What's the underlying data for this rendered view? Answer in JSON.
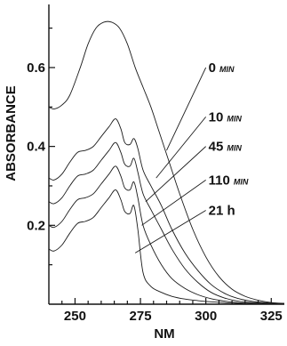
{
  "chart_data": {
    "type": "line",
    "title": "",
    "xlabel": "NM",
    "ylabel": "ABSORBANCE",
    "xlim": [
      240,
      330
    ],
    "ylim": [
      0,
      0.76
    ],
    "x_ticks": [
      250,
      275,
      300,
      325
    ],
    "y_ticks": [
      0.2,
      0.4,
      0.6
    ],
    "x_tick_labels": [
      "250",
      "275",
      "300",
      "325"
    ],
    "y_tick_labels": [
      "0.2",
      "0.4",
      "0.6"
    ],
    "grid": false,
    "legend": "annotations-right",
    "series": [
      {
        "name": "0",
        "unit": "MIN",
        "label_anchor": [
          300,
          0.6
        ],
        "curve_point": [
          285,
          0.39
        ],
        "x": [
          240,
          242,
          245,
          248,
          252,
          255,
          258,
          261,
          264,
          267,
          270,
          273,
          276,
          279,
          282,
          286,
          290,
          295,
          300,
          305,
          310,
          315,
          320,
          325,
          330
        ],
        "y": [
          0.5,
          0.495,
          0.505,
          0.53,
          0.6,
          0.66,
          0.7,
          0.715,
          0.715,
          0.7,
          0.66,
          0.6,
          0.55,
          0.5,
          0.44,
          0.36,
          0.28,
          0.19,
          0.12,
          0.07,
          0.038,
          0.02,
          0.01,
          0.004,
          0.002
        ]
      },
      {
        "name": "10",
        "unit": "MIN",
        "label_anchor": [
          300,
          0.475
        ],
        "curve_point": [
          281,
          0.32
        ],
        "x": [
          240,
          242,
          245,
          248,
          251,
          254,
          257,
          260,
          263,
          265.5,
          267.5,
          269,
          271,
          272.5,
          274,
          276,
          279,
          283,
          287,
          292,
          297,
          302,
          307,
          312,
          318,
          325,
          330
        ],
        "y": [
          0.32,
          0.315,
          0.33,
          0.36,
          0.385,
          0.39,
          0.4,
          0.425,
          0.45,
          0.47,
          0.445,
          0.41,
          0.405,
          0.42,
          0.395,
          0.34,
          0.3,
          0.25,
          0.19,
          0.13,
          0.085,
          0.05,
          0.028,
          0.015,
          0.007,
          0.003,
          0.002
        ]
      },
      {
        "name": "45",
        "unit": "MIN",
        "label_anchor": [
          300,
          0.4
        ],
        "curve_point": [
          277,
          0.26
        ],
        "x": [
          240,
          242,
          245,
          248,
          251,
          254,
          257,
          260,
          263,
          265.5,
          267.5,
          269,
          271,
          272.5,
          274,
          276,
          279,
          283,
          287,
          292,
          297,
          302,
          307,
          312,
          318,
          325,
          330
        ],
        "y": [
          0.26,
          0.255,
          0.27,
          0.3,
          0.325,
          0.33,
          0.34,
          0.365,
          0.39,
          0.41,
          0.385,
          0.355,
          0.35,
          0.37,
          0.335,
          0.28,
          0.24,
          0.19,
          0.14,
          0.09,
          0.055,
          0.03,
          0.016,
          0.008,
          0.004,
          0.002,
          0.001
        ]
      },
      {
        "name": "110",
        "unit": "MIN",
        "label_anchor": [
          300,
          0.315
        ],
        "curve_point": [
          275.5,
          0.2
        ],
        "x": [
          240,
          242,
          245,
          248,
          251,
          254,
          257,
          260,
          263,
          265.5,
          267.5,
          269,
          271,
          272.5,
          274,
          276,
          279,
          283,
          287,
          292,
          297,
          302,
          307,
          312,
          318,
          325,
          330
        ],
        "y": [
          0.2,
          0.195,
          0.21,
          0.24,
          0.265,
          0.27,
          0.28,
          0.305,
          0.33,
          0.35,
          0.325,
          0.295,
          0.29,
          0.31,
          0.27,
          0.2,
          0.15,
          0.1,
          0.065,
          0.04,
          0.024,
          0.014,
          0.008,
          0.004,
          0.002,
          0.001,
          0.001
        ]
      },
      {
        "name": "21 h",
        "unit": "",
        "label_anchor": [
          300,
          0.238
        ],
        "curve_point": [
          273,
          0.13
        ],
        "x": [
          240,
          242,
          245,
          248,
          251,
          254,
          257,
          260,
          263,
          265.5,
          267.5,
          269,
          271,
          272.5,
          274,
          276,
          279,
          283,
          287,
          292,
          297,
          302,
          307,
          312,
          318,
          325,
          330
        ],
        "y": [
          0.14,
          0.135,
          0.15,
          0.18,
          0.205,
          0.21,
          0.22,
          0.245,
          0.27,
          0.29,
          0.265,
          0.235,
          0.23,
          0.25,
          0.19,
          0.08,
          0.045,
          0.03,
          0.02,
          0.013,
          0.009,
          0.006,
          0.004,
          0.002,
          0.001,
          0.001,
          0.0
        ]
      }
    ]
  }
}
